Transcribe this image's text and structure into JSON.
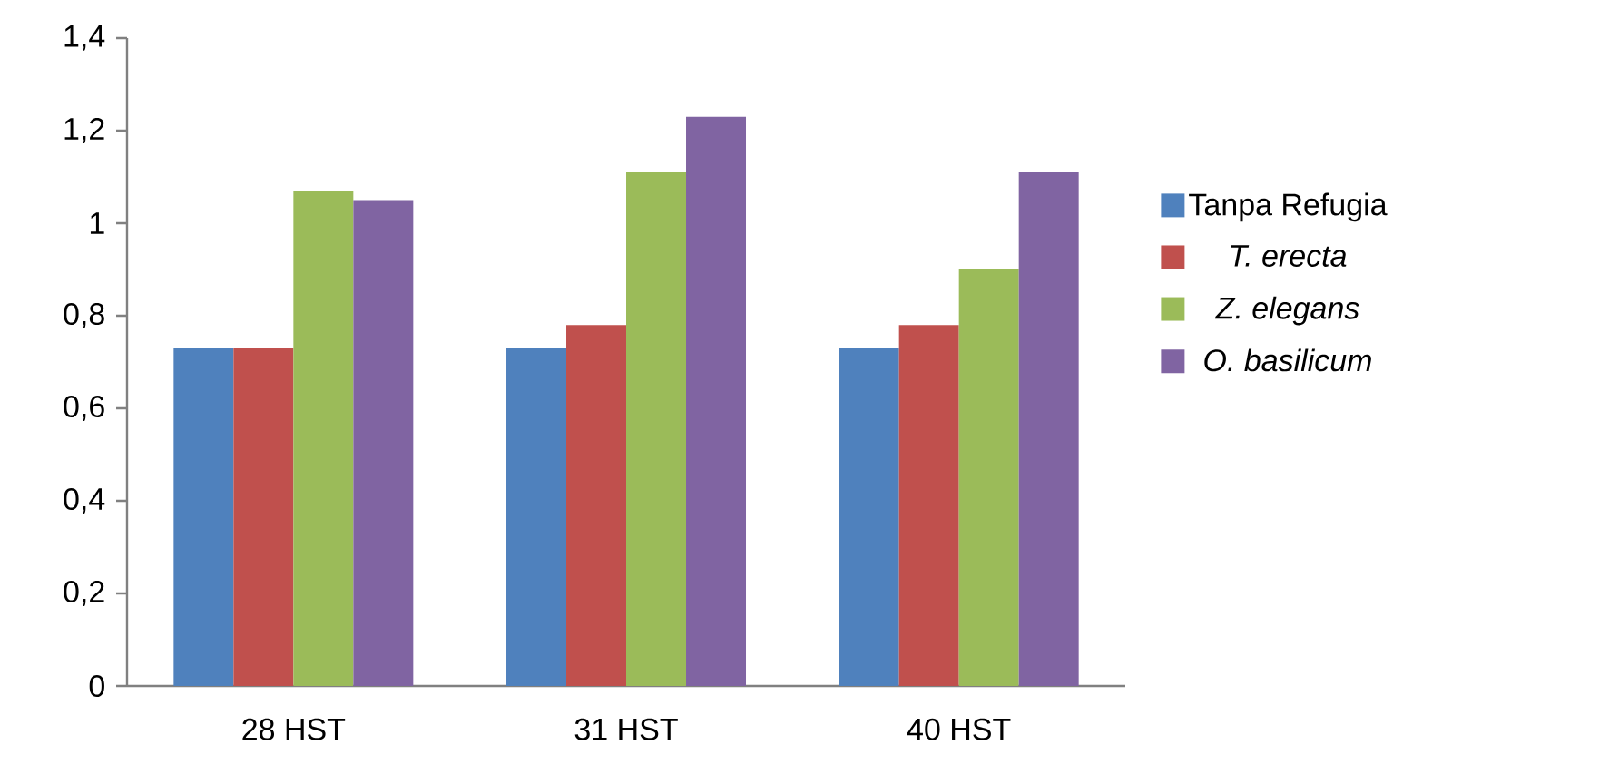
{
  "chart_data": {
    "type": "bar",
    "categories": [
      "28 HST",
      "31 HST",
      "40 HST"
    ],
    "series": [
      {
        "name": "Tanpa Refugia",
        "color": "#4f81bd",
        "values": [
          0.73,
          0.73,
          0.73
        ]
      },
      {
        "name": "*T. erecta*",
        "color": "#c0504d",
        "values": [
          0.73,
          0.78,
          0.78
        ]
      },
      {
        "name": "*Z. elegans*",
        "color": "#9bbb59",
        "values": [
          1.07,
          1.11,
          0.9
        ]
      },
      {
        "name": "*O. basilicum*",
        "color": "#8064a2",
        "values": [
          1.05,
          1.23,
          1.11
        ]
      }
    ],
    "ylim": [
      0,
      1.4
    ],
    "yticks": [
      0,
      {
        "value": 0.2,
        "label": "0,2"
      },
      {
        "value": 0.4,
        "label": "0,4"
      },
      {
        "value": 0.6,
        "label": "0,6"
      },
      {
        "value": 0.8,
        "label": "0,8"
      },
      1,
      {
        "value": 1.2,
        "label": "1,2"
      },
      {
        "value": 1.4,
        "label": "1,4"
      }
    ],
    "grid": false,
    "legend": "right"
  }
}
